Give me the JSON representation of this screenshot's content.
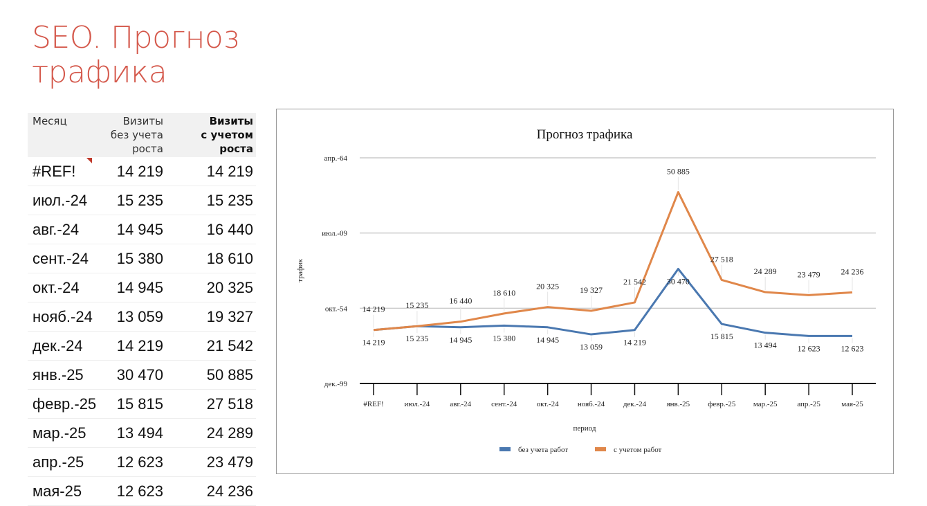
{
  "page_title": "SEO. Прогноз трафика",
  "table": {
    "headers": [
      "Месяц",
      "Визиты без учета роста",
      "Визиты с учетом роста"
    ],
    "rows": [
      [
        "#REF!",
        "14 219",
        "14 219"
      ],
      [
        "июл.-24",
        "15 235",
        "15 235"
      ],
      [
        "авг.-24",
        "14 945",
        "16 440"
      ],
      [
        "сент.-24",
        "15 380",
        "18 610"
      ],
      [
        "окт.-24",
        "14 945",
        "20 325"
      ],
      [
        "нояб.-24",
        "13 059",
        "19 327"
      ],
      [
        "дек.-24",
        "14 219",
        "21 542"
      ],
      [
        "янв.-25",
        "30 470",
        "50 885"
      ],
      [
        "февр.-25",
        "15 815",
        "27 518"
      ],
      [
        "мар.-25",
        "13 494",
        "24 289"
      ],
      [
        "апр.-25",
        "12 623",
        "23 479"
      ],
      [
        "мая-25",
        "12 623",
        "24 236"
      ]
    ]
  },
  "chart_data": {
    "type": "line",
    "title": "Прогноз трафика",
    "xlabel": "период",
    "ylabel": "трафик",
    "categories": [
      "#REF!",
      "июл.-24",
      "авг.-24",
      "сент.-24",
      "окт.-24",
      "нояб.-24",
      "дек.-24",
      "янв.-25",
      "февр.-25",
      "мар.-25",
      "апр.-25",
      "мая-25"
    ],
    "ylim": [
      0,
      60000
    ],
    "yticks": [
      0,
      20000,
      40000,
      60000
    ],
    "ytick_labels": [
      "дек.-99",
      "окт.-54",
      "июл.-09",
      "апр.-64"
    ],
    "grid": true,
    "legend": "bottom",
    "series": [
      {
        "name": "без учета работ",
        "color": "#4a78b0",
        "values": [
          14219,
          15235,
          14945,
          15380,
          14945,
          13059,
          14219,
          30470,
          15815,
          13494,
          12623,
          12623
        ],
        "labels": [
          "14 219",
          "15 235",
          "14 945",
          "15 380",
          "14 945",
          "13 059",
          "14 219",
          "30 470",
          "15 815",
          "13 494",
          "12 623",
          "12 623"
        ]
      },
      {
        "name": "с учетом работ",
        "color": "#e0874a",
        "values": [
          14219,
          15235,
          16440,
          18610,
          20325,
          19327,
          21542,
          50885,
          27518,
          24289,
          23479,
          24236
        ],
        "labels": [
          "14 219",
          "15 235",
          "16 440",
          "18 610",
          "20 325",
          "19 327",
          "21 542",
          "50 885",
          "27 518",
          "24 289",
          "23 479",
          "24 236"
        ]
      }
    ]
  }
}
